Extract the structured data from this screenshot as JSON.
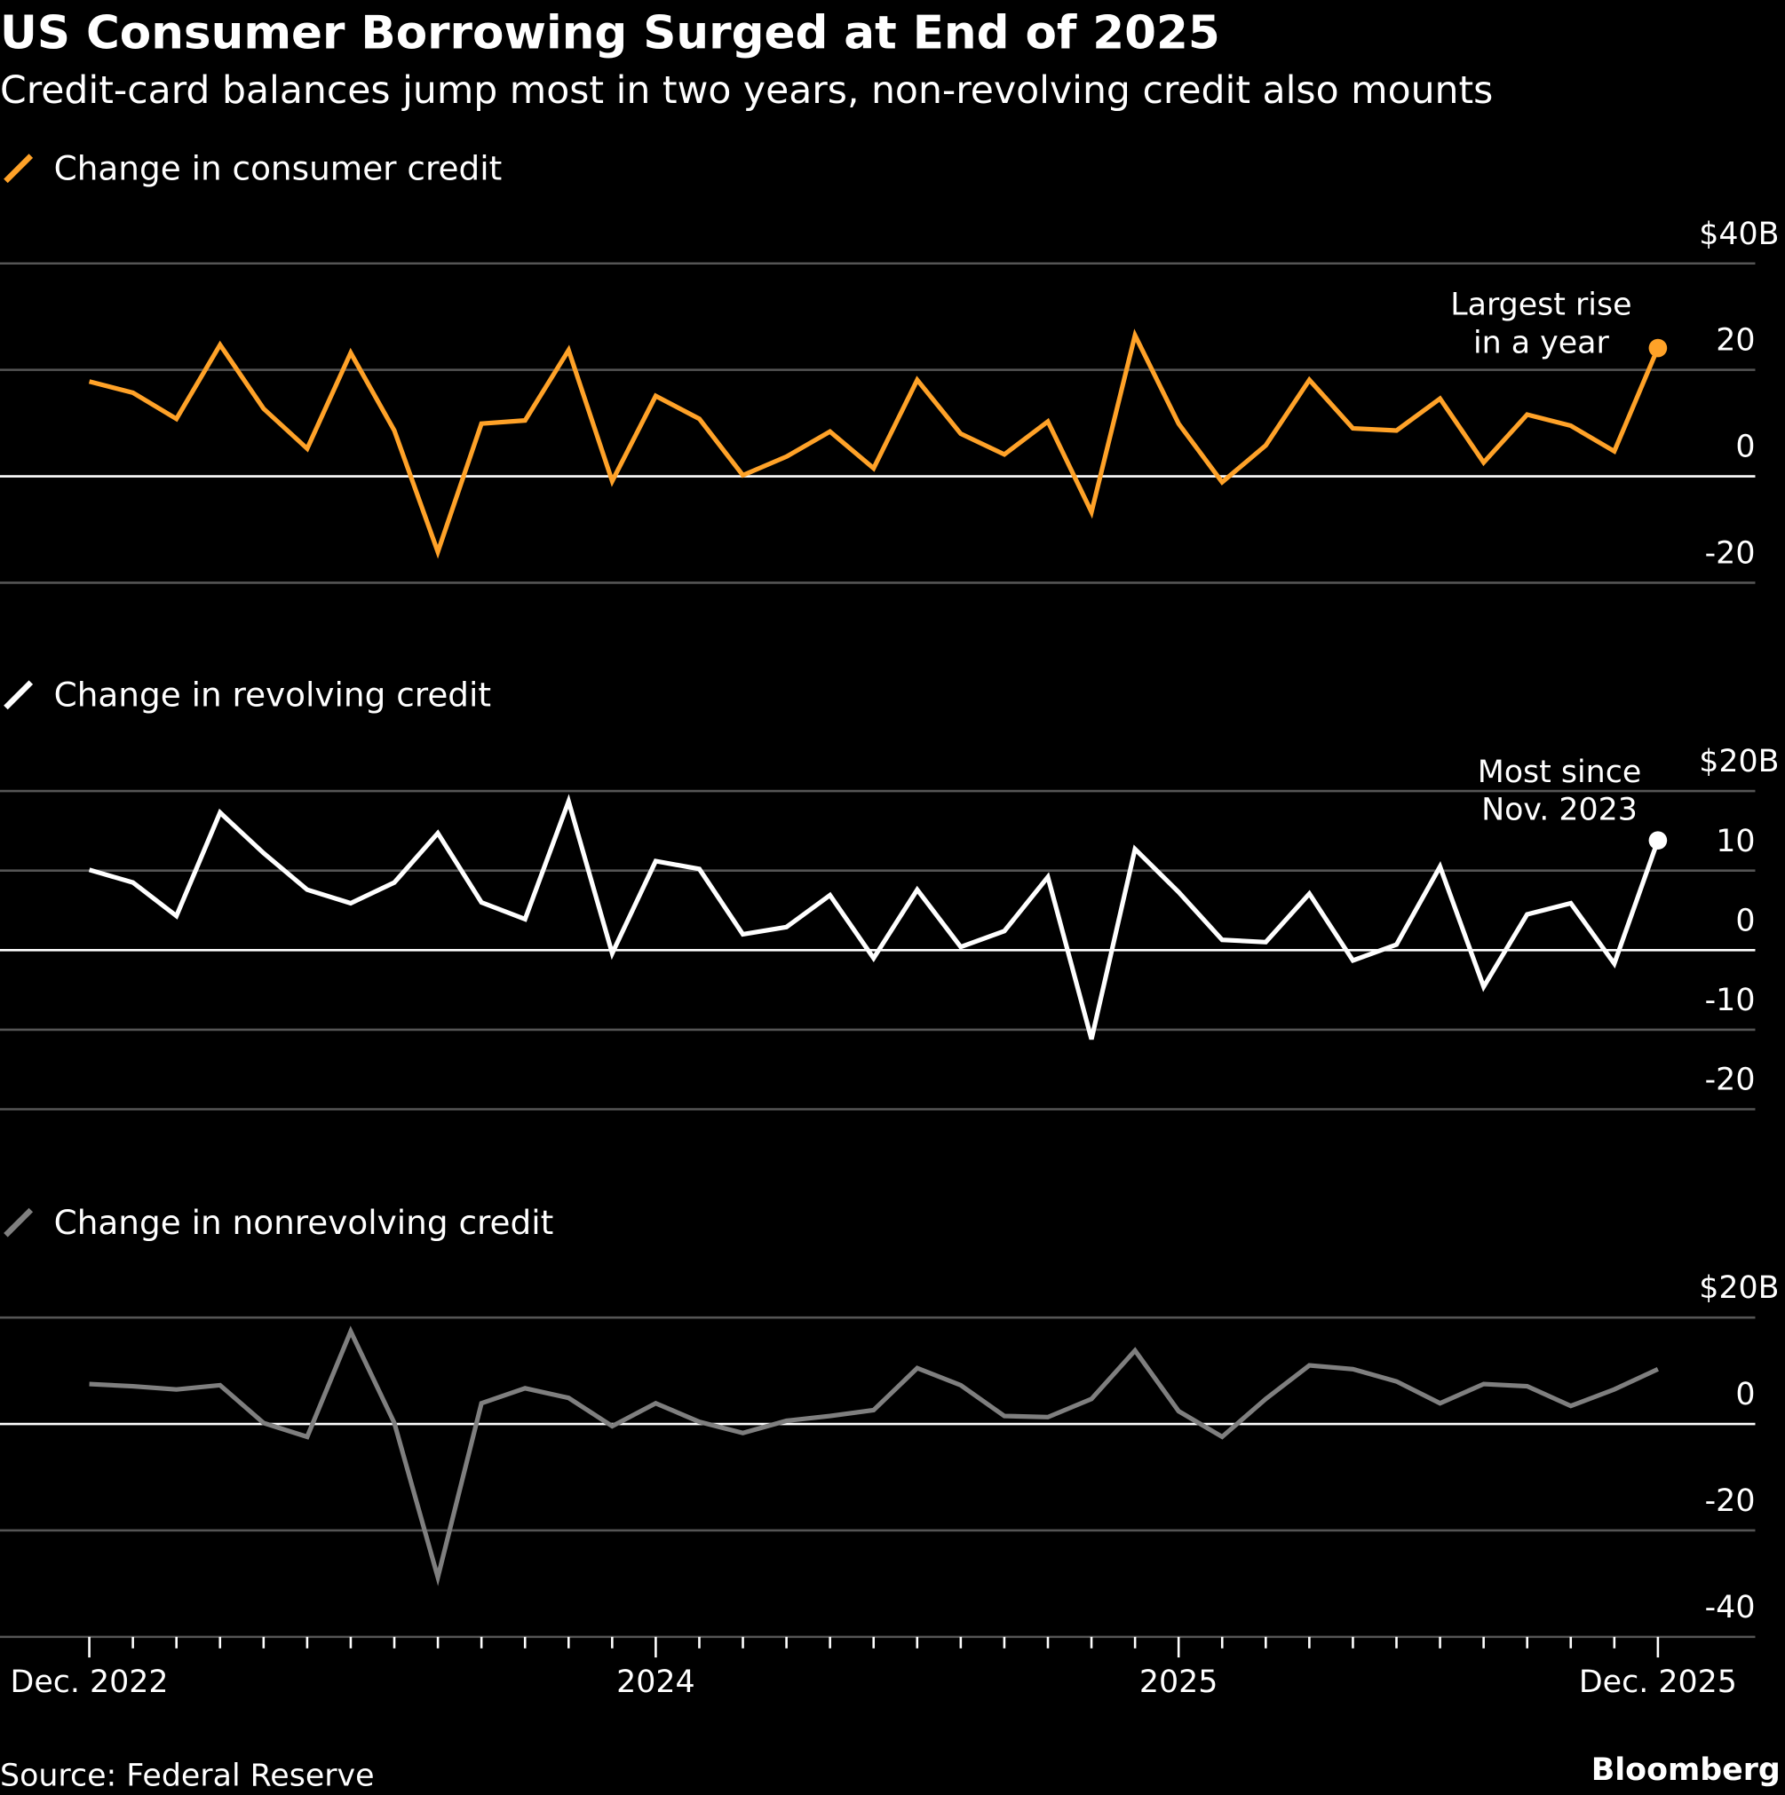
{
  "header": {
    "title": "US Consumer Borrowing Surged at End of 2025",
    "subtitle": "Credit-card balances jump most in two years, non-revolving credit also mounts"
  },
  "footer": {
    "source": "Source: Federal Reserve",
    "brand": "Bloomberg"
  },
  "x_axis": {
    "tick_labels": [
      "Dec. 2022",
      "2024",
      "2025",
      "Dec. 2025"
    ],
    "tick_label_months": [
      0,
      13,
      25,
      36
    ],
    "months_count": 37
  },
  "chart_data": [
    {
      "type": "line",
      "legend": "Change in consumer credit",
      "color": "#ffa228",
      "ylim": [
        -20,
        40
      ],
      "yticks": [
        40,
        20,
        0,
        -20
      ],
      "ytick_labels": [
        "$40B",
        "20",
        "0",
        "-20"
      ],
      "x_start": "Dec. 2022",
      "x_end": "Dec. 2025",
      "values": [
        17.8,
        15.7,
        10.8,
        24.7,
        12.7,
        5.2,
        23.2,
        8.6,
        -14.2,
        9.9,
        10.5,
        23.7,
        -0.9,
        15.1,
        10.8,
        0.2,
        3.7,
        8.4,
        1.5,
        18.1,
        8.0,
        4.1,
        10.3,
        -6.7,
        26.5,
        9.9,
        -1.1,
        5.8,
        18.1,
        9.0,
        8.6,
        14.6,
        2.6,
        11.6,
        9.5,
        4.7,
        24.1
      ],
      "annotation": [
        "Largest rise",
        "in a year"
      ],
      "end_marker": true,
      "grid": true
    },
    {
      "type": "line",
      "legend": "Change in revolving credit",
      "color": "#ffffff",
      "ylim": [
        -20,
        20
      ],
      "yticks": [
        20,
        10,
        0,
        -10,
        -20
      ],
      "ytick_labels": [
        "$20B",
        "10",
        "0",
        "-10",
        "-20"
      ],
      "x_start": "Dec. 2022",
      "x_end": "Dec. 2025",
      "values": [
        10.1,
        8.5,
        4.3,
        17.3,
        12.2,
        7.6,
        5.9,
        8.5,
        14.7,
        6.0,
        3.9,
        18.7,
        -0.4,
        11.2,
        10.2,
        2.0,
        2.9,
        6.9,
        -1.0,
        7.6,
        0.4,
        2.4,
        9.2,
        -11.2,
        12.7,
        7.3,
        1.3,
        1.0,
        7.1,
        -1.3,
        0.7,
        10.5,
        -4.6,
        4.5,
        5.9,
        -1.7,
        13.8
      ],
      "annotation": [
        "Most since",
        "Nov. 2023"
      ],
      "end_marker": true,
      "grid": true
    },
    {
      "type": "line",
      "legend": "Change in nonrevolving credit",
      "color": "#7f7f7f",
      "ylim": [
        -40,
        20
      ],
      "yticks": [
        20,
        0,
        -20,
        -40
      ],
      "ytick_labels": [
        "$20B",
        "0",
        "-20",
        "-40"
      ],
      "x_start": "Dec. 2022",
      "x_end": "Dec. 2025",
      "values": [
        7.5,
        7.1,
        6.5,
        7.3,
        0.2,
        -2.4,
        17.4,
        0.2,
        -28.8,
        3.9,
        6.7,
        4.9,
        -0.4,
        3.9,
        0.4,
        -1.7,
        0.6,
        1.5,
        2.6,
        10.5,
        7.3,
        1.5,
        1.3,
        4.7,
        13.8,
        2.4,
        -2.4,
        4.7,
        11.0,
        10.3,
        8.0,
        3.9,
        7.5,
        7.1,
        3.4,
        6.5,
        10.3
      ],
      "end_marker": false,
      "grid": true
    }
  ]
}
